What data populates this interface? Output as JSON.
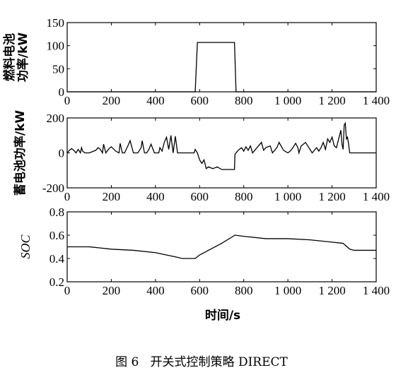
{
  "caption": "图 6   开关式控制策略 DIRECT",
  "chart_data": [
    {
      "type": "line",
      "ylabel_lines": [
        "燃料电池",
        "功率/kW"
      ],
      "xlim": [
        0,
        1400
      ],
      "ylim": [
        0,
        150
      ],
      "xticks": [
        0,
        200,
        400,
        600,
        800,
        1000,
        1200,
        1400
      ],
      "xtick_labels": [
        "0",
        "200",
        "400",
        "600",
        "800",
        "1 000",
        "1 200",
        "1 400"
      ],
      "yticks": [
        0,
        50,
        100,
        150
      ],
      "ytick_labels": [
        "0",
        "50",
        "100",
        "150"
      ],
      "series": [
        {
          "x": [
            0,
            580,
            590,
            758,
            765,
            1400
          ],
          "y": [
            0,
            0,
            107,
            107,
            0,
            0
          ]
        }
      ]
    },
    {
      "type": "line",
      "ylabel_lines": [
        "蓄电池功率/kW"
      ],
      "xlim": [
        0,
        1400
      ],
      "ylim": [
        -200,
        200
      ],
      "xticks": [
        0,
        200,
        400,
        600,
        800,
        1000,
        1200,
        1400
      ],
      "xtick_labels": [
        "0",
        "200",
        "400",
        "600",
        "800",
        "1 000",
        "1 200",
        "1 400"
      ],
      "yticks": [
        -200,
        0,
        200
      ],
      "ytick_labels": [
        "-200",
        "0",
        "200"
      ],
      "series": [
        {
          "x": [
            0,
            10,
            20,
            30,
            40,
            50,
            60,
            65,
            70,
            80,
            100,
            130,
            140,
            150,
            160,
            165,
            175,
            190,
            200,
            220,
            235,
            240,
            250,
            260,
            275,
            285,
            300,
            320,
            335,
            340,
            350,
            360,
            370,
            380,
            395,
            415,
            420,
            430,
            440,
            450,
            460,
            470,
            480,
            490,
            500,
            520,
            540,
            560,
            575,
            580,
            590,
            600,
            610,
            620,
            630,
            640,
            660,
            680,
            700,
            730,
            758,
            760,
            765,
            775,
            790,
            800,
            810,
            820,
            830,
            840,
            860,
            880,
            890,
            900,
            920,
            930,
            950,
            960,
            980,
            1000,
            1010,
            1020,
            1035,
            1045,
            1050,
            1060,
            1080,
            1100,
            1110,
            1130,
            1140,
            1150,
            1160,
            1170,
            1180,
            1190,
            1200,
            1210,
            1220,
            1230,
            1240,
            1245,
            1250,
            1255,
            1260,
            1265,
            1270,
            1275,
            1280,
            1290,
            1300,
            1400
          ],
          "y": [
            0,
            15,
            25,
            15,
            0,
            20,
            0,
            30,
            10,
            0,
            0,
            15,
            30,
            20,
            0,
            50,
            0,
            25,
            35,
            10,
            0,
            55,
            0,
            0,
            40,
            70,
            0,
            0,
            30,
            70,
            0,
            0,
            20,
            50,
            0,
            0,
            30,
            10,
            60,
            90,
            20,
            100,
            0,
            95,
            0,
            0,
            0,
            0,
            0,
            20,
            0,
            -40,
            -60,
            -40,
            -90,
            -80,
            -90,
            -80,
            -95,
            -95,
            -95,
            -10,
            0,
            15,
            30,
            10,
            35,
            15,
            40,
            0,
            30,
            60,
            15,
            30,
            40,
            0,
            30,
            60,
            15,
            0,
            10,
            25,
            55,
            30,
            0,
            40,
            60,
            20,
            0,
            30,
            10,
            30,
            60,
            20,
            80,
            60,
            90,
            40,
            30,
            80,
            130,
            50,
            20,
            160,
            170,
            80,
            90,
            50,
            0,
            0,
            0,
            0
          ]
        }
      ]
    },
    {
      "type": "line",
      "ylabel_lines": [
        "SOC"
      ],
      "xlim": [
        0,
        1400
      ],
      "ylim": [
        0.2,
        0.8
      ],
      "xticks": [
        0,
        200,
        400,
        600,
        800,
        1000,
        1200,
        1400
      ],
      "xtick_labels": [
        "0",
        "200",
        "400",
        "600",
        "800",
        "1 000",
        "1 200",
        "1 400"
      ],
      "yticks": [
        0.2,
        0.4,
        0.6,
        0.8
      ],
      "ytick_labels": [
        "0.2",
        "0.4",
        "0.6",
        "0.8"
      ],
      "series": [
        {
          "x": [
            0,
            100,
            150,
            200,
            300,
            400,
            500,
            520,
            580,
            600,
            700,
            760,
            800,
            900,
            1000,
            1100,
            1200,
            1250,
            1280,
            1300,
            1400
          ],
          "y": [
            0.5,
            0.5,
            0.49,
            0.48,
            0.47,
            0.45,
            0.41,
            0.4,
            0.4,
            0.43,
            0.53,
            0.6,
            0.59,
            0.57,
            0.57,
            0.56,
            0.54,
            0.53,
            0.48,
            0.47,
            0.47
          ]
        }
      ],
      "xlabel": "时间/s"
    }
  ]
}
